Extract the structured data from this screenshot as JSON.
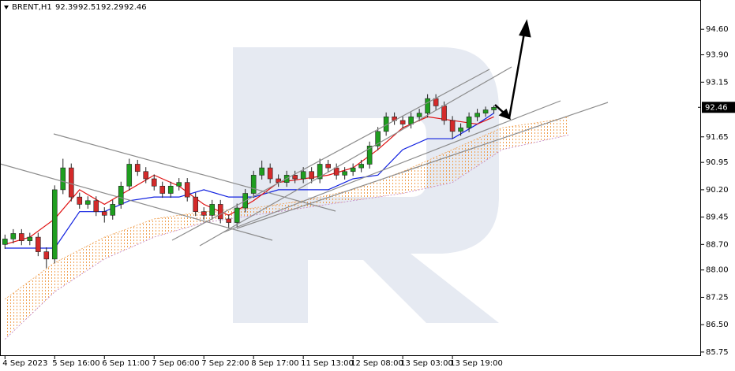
{
  "chart_data": {
    "type": "candlestick",
    "header": {
      "symbol": "BRENT,H1",
      "open": 92.39,
      "high": 92.51,
      "low": 92.29,
      "close": 92.46
    },
    "price_label": 92.46,
    "ylim": [
      85.64,
      95.36
    ],
    "yticks": [
      {
        "value": 94.6,
        "label": "94.60"
      },
      {
        "value": 93.9,
        "label": "93.90"
      },
      {
        "value": 93.15,
        "label": "93.15"
      },
      {
        "value": 91.65,
        "label": "91.65"
      },
      {
        "value": 90.95,
        "label": "90.95"
      },
      {
        "value": 90.2,
        "label": "90.20"
      },
      89.45,
      {
        "value": 88.7,
        "label": "88.70"
      },
      {
        "value": 88.0,
        "label": "88.00"
      },
      87.25,
      {
        "value": 86.5,
        "label": "86.50"
      },
      85.75
    ],
    "xlim": [
      -0.6,
      84
    ],
    "xticks": [
      {
        "value": 0,
        "label": "4 Sep 2023"
      },
      {
        "value": 6,
        "label": "5 Sep 16:00"
      },
      {
        "value": 12,
        "label": "6 Sep 11:00"
      },
      {
        "value": 18,
        "label": "7 Sep 06:00"
      },
      {
        "value": 24,
        "label": "7 Sep 22:00"
      },
      {
        "value": 30,
        "label": "8 Sep 17:00"
      },
      {
        "value": 36,
        "label": "11 Sep 13:00"
      },
      {
        "value": 42,
        "label": "12 Sep 08:00"
      },
      {
        "value": 48,
        "label": "13 Sep 03:00"
      },
      {
        "value": 54,
        "label": "13 Sep 19:00"
      }
    ],
    "up_color": "#1f9e1f",
    "down_color": "#d42a2a",
    "open": [
      88.7,
      88.85,
      89.0,
      88.8,
      88.9,
      88.5,
      88.3,
      90.2,
      90.8,
      90.0,
      89.8,
      89.9,
      89.6,
      89.5,
      89.8,
      90.3,
      90.9,
      90.7,
      90.5,
      90.3,
      90.1,
      90.3,
      90.4,
      90.0,
      89.6,
      89.5,
      89.8,
      89.4,
      89.3,
      89.7,
      90.1,
      90.6,
      90.8,
      90.5,
      90.4,
      90.6,
      90.5,
      90.7,
      90.5,
      90.9,
      90.8,
      90.6,
      90.7,
      90.8,
      90.9,
      91.4,
      91.8,
      92.2,
      92.1,
      92.0,
      92.2,
      92.3,
      92.7,
      92.5,
      92.1,
      91.8,
      91.9,
      92.2,
      92.3,
      92.39
    ],
    "high": [
      88.97,
      89.12,
      89.12,
      89.02,
      89.02,
      88.62,
      90.32,
      91.05,
      90.92,
      90.12,
      90.02,
      90.02,
      89.72,
      89.92,
      90.42,
      91.05,
      91.02,
      90.82,
      90.62,
      90.42,
      90.42,
      90.52,
      90.52,
      90.12,
      89.72,
      89.92,
      89.92,
      89.52,
      89.82,
      90.22,
      90.72,
      91.0,
      90.92,
      90.62,
      90.72,
      90.72,
      90.82,
      90.82,
      91.05,
      91.02,
      90.92,
      90.82,
      90.92,
      91.02,
      91.52,
      91.92,
      92.32,
      92.32,
      92.22,
      92.32,
      92.42,
      92.82,
      92.82,
      92.62,
      92.22,
      92.02,
      92.32,
      92.42,
      92.48,
      92.51
    ],
    "low": [
      88.58,
      88.73,
      88.68,
      88.68,
      88.38,
      88.05,
      88.18,
      90.08,
      89.88,
      89.68,
      89.68,
      89.48,
      89.3,
      89.38,
      89.68,
      90.18,
      90.58,
      90.38,
      90.18,
      89.98,
      89.98,
      90.18,
      89.88,
      89.48,
      89.38,
      89.38,
      89.28,
      89.15,
      89.18,
      89.58,
      89.98,
      90.48,
      90.38,
      90.28,
      90.28,
      90.38,
      90.38,
      90.38,
      90.38,
      90.68,
      90.48,
      90.48,
      90.58,
      90.68,
      90.78,
      91.28,
      91.68,
      91.98,
      91.88,
      91.88,
      92.08,
      92.18,
      92.38,
      91.98,
      91.6,
      91.68,
      91.78,
      92.08,
      92.2,
      92.29
    ],
    "close": [
      88.85,
      89.0,
      88.8,
      88.9,
      88.5,
      88.3,
      90.2,
      90.8,
      90.0,
      89.8,
      89.9,
      89.6,
      89.5,
      89.8,
      90.3,
      90.9,
      90.7,
      90.5,
      90.3,
      90.1,
      90.3,
      90.4,
      90.0,
      89.6,
      89.5,
      89.8,
      89.4,
      89.3,
      89.7,
      90.1,
      90.6,
      90.8,
      90.5,
      90.4,
      90.6,
      90.5,
      90.7,
      90.5,
      90.9,
      90.8,
      90.6,
      90.7,
      90.8,
      90.9,
      91.4,
      91.8,
      92.2,
      92.1,
      92.0,
      92.2,
      92.3,
      92.7,
      92.5,
      92.1,
      91.8,
      91.9,
      92.2,
      92.3,
      92.39,
      92.46
    ],
    "lines": {
      "x": [
        0,
        3,
        6,
        9,
        12,
        15,
        18,
        21,
        24,
        27,
        30,
        33,
        36,
        39,
        42,
        45,
        48,
        51,
        54,
        57,
        59
      ],
      "tenkan": {
        "color": "#e01010",
        "values": [
          88.7,
          88.9,
          89.4,
          90.2,
          89.8,
          90.2,
          90.6,
          90.3,
          89.8,
          89.5,
          89.9,
          90.4,
          90.5,
          90.6,
          90.8,
          91.3,
          91.9,
          92.2,
          92.1,
          92.0,
          92.2
        ]
      },
      "kijun": {
        "color": "#1020e0",
        "values": [
          88.6,
          88.6,
          88.6,
          89.6,
          89.6,
          89.9,
          90.0,
          90.0,
          90.2,
          90.0,
          90.0,
          90.2,
          90.2,
          90.2,
          90.5,
          90.6,
          91.3,
          91.6,
          91.6,
          92.0,
          92.3
        ]
      }
    },
    "cloud": {
      "x": [
        0,
        6,
        12,
        18,
        24,
        30,
        36,
        42,
        48,
        54,
        60,
        66,
        68
      ],
      "color": "#f0a050",
      "upper": [
        87.2,
        88.2,
        88.9,
        89.4,
        89.6,
        89.7,
        89.9,
        90.2,
        90.7,
        91.3,
        91.9,
        92.1,
        92.2
      ],
      "lower": [
        86.1,
        87.4,
        88.3,
        88.9,
        89.3,
        89.5,
        89.7,
        89.9,
        90.1,
        90.4,
        91.3,
        91.6,
        91.7
      ]
    }
  }
}
